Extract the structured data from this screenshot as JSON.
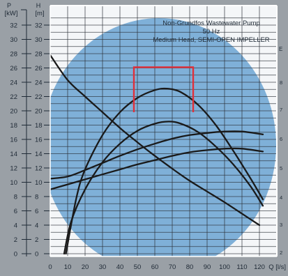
{
  "chart_data": {
    "type": "line",
    "title": "Non-Grundfos Wastewater Pump",
    "subtitle_lines": [
      "50 Hz",
      "Medium Head, SEMI-OPEN IMPELLER"
    ],
    "xlabel": "Q [l/s]",
    "xlim": [
      0,
      130
    ],
    "x_ticks": [
      0,
      10,
      20,
      30,
      40,
      50,
      60,
      70,
      80,
      90,
      100,
      110,
      120
    ],
    "left_axes": [
      {
        "symbol": "P",
        "unit": "[kW]",
        "ylim": [
          0,
          33
        ],
        "ticks": [
          0,
          2,
          4,
          6,
          8,
          10,
          12,
          14,
          16,
          18,
          20,
          22,
          24,
          26,
          28,
          30,
          32
        ]
      },
      {
        "symbol": "H",
        "unit": "[m]",
        "ylim": [
          0,
          33
        ],
        "ticks": [
          0,
          2,
          4,
          6,
          8,
          10,
          12,
          14,
          16,
          18,
          20,
          22,
          24,
          26,
          28,
          30,
          32
        ]
      }
    ],
    "right_axis_partial": {
      "symbol": "E",
      "visible_ticks": [
        "8",
        "7",
        "6",
        "5",
        "4",
        "3",
        "2"
      ]
    },
    "grid": true,
    "background": {
      "plot": "#f4f6f8",
      "ellipse": "#7fb0d8",
      "grid": "#2a2f36",
      "curve": "#1a1a1a",
      "frame": "#ffffff"
    },
    "series": [
      {
        "x": [
          0,
          10,
          20,
          30,
          40,
          50,
          60,
          70,
          80,
          90,
          100,
          110,
          120
        ],
        "y": [
          27.8,
          24.3,
          22.0,
          19.8,
          17.6,
          15.6,
          13.7,
          11.9,
          10.2,
          8.7,
          7.2,
          5.6,
          4.0
        ]
      },
      {
        "x": [
          9,
          15,
          20,
          30,
          40,
          50,
          60,
          67,
          75,
          85,
          95,
          105,
          115,
          122
        ],
        "y": [
          0,
          7.8,
          11.8,
          16.6,
          19.8,
          21.8,
          22.9,
          23.1,
          22.6,
          20.8,
          18.0,
          14.4,
          10.5,
          7.6
        ]
      },
      {
        "x": [
          8,
          12,
          20,
          30,
          40,
          50,
          60,
          68,
          75,
          85,
          95,
          105,
          115,
          122
        ],
        "y": [
          0,
          4.5,
          9.0,
          12.8,
          15.4,
          17.2,
          18.2,
          18.5,
          18.2,
          17.0,
          15.0,
          12.5,
          9.4,
          6.7
        ]
      },
      {
        "x": [
          0,
          10,
          20,
          30,
          40,
          50,
          60,
          70,
          80,
          90,
          100,
          110,
          122
        ],
        "y": [
          10.5,
          10.8,
          11.7,
          12.7,
          13.7,
          14.6,
          15.4,
          16.1,
          16.6,
          16.9,
          17.1,
          17.1,
          16.7
        ]
      },
      {
        "x": [
          0,
          10,
          20,
          30,
          40,
          50,
          60,
          70,
          80,
          90,
          100,
          110,
          122
        ],
        "y": [
          9.0,
          9.7,
          10.4,
          11.1,
          11.8,
          12.5,
          13.1,
          13.7,
          14.2,
          14.5,
          14.7,
          14.7,
          14.3
        ]
      }
    ],
    "annotations": [
      {
        "type": "bracket",
        "color": "#e0303a",
        "x_range": [
          48,
          82
        ],
        "y_top": 26.1,
        "y_bottom": 19.8
      }
    ]
  }
}
